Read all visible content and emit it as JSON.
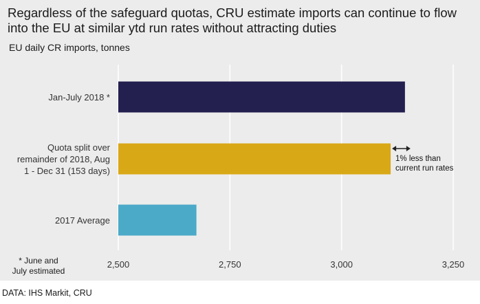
{
  "chart_data": {
    "type": "bar",
    "orientation": "horizontal",
    "title": "Regardless of the safeguard quotas, CRU estimate imports can continue to flow into the EU at similar ytd run rates without attracting duties",
    "subtitle": "EU daily CR imports, tonnes",
    "categories": [
      [
        "Jan-July 2018 *"
      ],
      [
        "Quota split over",
        "remainder of 2018, Aug",
        "1 - Dec 31 (153 days)"
      ],
      [
        "2017 Average"
      ]
    ],
    "values": [
      3142,
      3110,
      2675
    ],
    "colors": [
      "#231f4f",
      "#d9a817",
      "#4baac8"
    ],
    "xlim": [
      2500,
      3250
    ],
    "xticks": [
      "2,500",
      "2,750",
      "3,000",
      "3,250"
    ],
    "xtick_values": [
      2500,
      2750,
      3000,
      3250
    ],
    "grid": "vertical",
    "annotation": {
      "lines": [
        "1% less than",
        "current run rates"
      ]
    },
    "footnote": "* June and July estimated",
    "source": "DATA: IHS Markit, CRU"
  }
}
